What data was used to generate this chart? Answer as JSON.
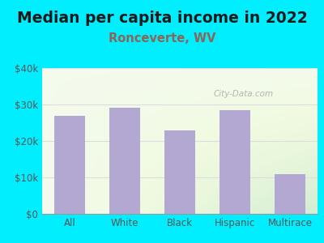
{
  "title": "Median per capita income in 2022",
  "subtitle": "Ronceverte, WV",
  "categories": [
    "All",
    "White",
    "Black",
    "Hispanic",
    "Multirace"
  ],
  "values": [
    27000,
    29000,
    23000,
    28500,
    11000
  ],
  "bar_color": "#b3a8d1",
  "title_fontsize": 13.5,
  "subtitle_fontsize": 10.5,
  "subtitle_color": "#8B6555",
  "title_color": "#1a1a1a",
  "background_outer": "#00eeff",
  "tick_color": "#555555",
  "ylim": [
    0,
    40000
  ],
  "yticks": [
    0,
    10000,
    20000,
    30000,
    40000
  ],
  "ytick_labels": [
    "$0",
    "$10k",
    "$20k",
    "$30k",
    "$40k"
  ],
  "watermark_text": "City-Data.com",
  "watermark_color": "#aaaaaa",
  "grid_color": "#dddddd"
}
